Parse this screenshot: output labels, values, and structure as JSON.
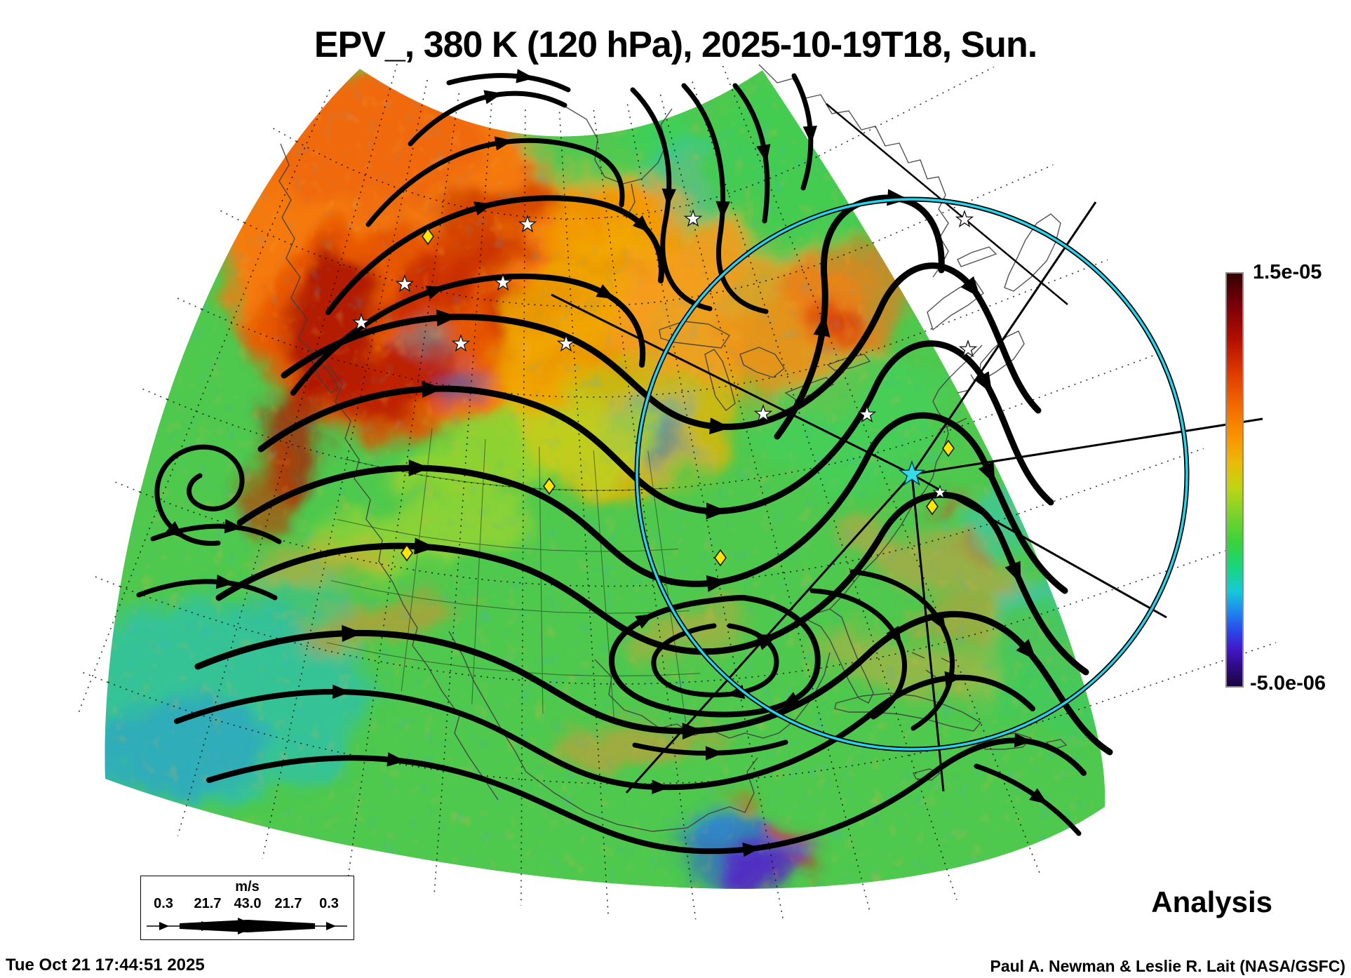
{
  "title": "EPV_, 380 K (120 hPa), 2025-10-19T18, Sun.",
  "colorbar": {
    "max_label": "1.5e-05",
    "min_label": "-5.0e-06"
  },
  "wind_legend": {
    "units_label": "m/s",
    "values": [
      "0.3",
      "21.7",
      "43.0",
      "21.7",
      "0.3"
    ]
  },
  "annotations": {
    "status_label": "Analysis",
    "generated_timestamp": "Tue Oct 21 17:44:51 2025",
    "credit": "Paul A. Newman & Leslie R. Lait (NASA/GSFC)"
  },
  "colors": {
    "range_ring": "#22d6ee",
    "station_marker": "#ffe600",
    "star_marker": "#ffffff",
    "colorbar_top": "#330003",
    "colorbar_bottom": "#1a0440"
  }
}
